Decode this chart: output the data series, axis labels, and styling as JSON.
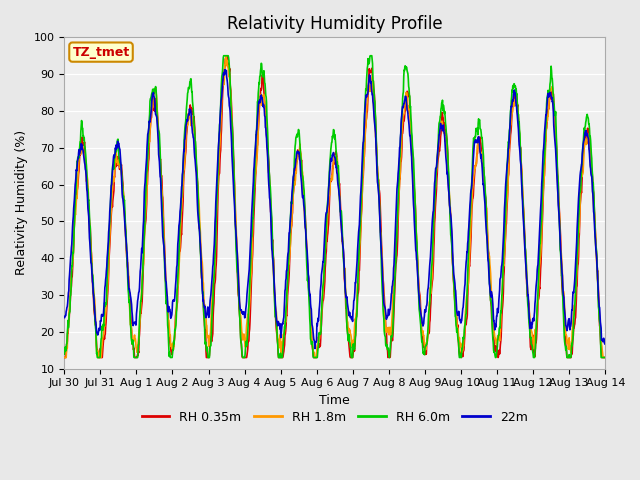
{
  "title": "Relativity Humidity Profile",
  "xlabel": "Time",
  "ylabel": "Relativity Humidity (%)",
  "ylim": [
    10,
    100
  ],
  "tick_labels": [
    "Jul 30",
    "Jul 31",
    "Aug 1",
    "Aug 2",
    "Aug 3",
    "Aug 4",
    "Aug 5",
    "Aug 6",
    "Aug 7",
    "Aug 8",
    "Aug 9",
    "Aug 10",
    "Aug 11",
    "Aug 12",
    "Aug 13",
    "Aug 14"
  ],
  "annotation_text": "TZ_tmet",
  "annotation_bg": "#ffffcc",
  "annotation_border": "#cc8800",
  "annotation_text_color": "#cc0000",
  "colors": {
    "RH 0.35m": "#dd0000",
    "RH 1.8m": "#ff9900",
    "RH 6.0m": "#00cc00",
    "22m": "#0000cc"
  },
  "bg_color": "#e8e8e8",
  "plot_bg": "#f0f0f0",
  "linewidth": 1.2,
  "title_fontsize": 12,
  "label_fontsize": 9,
  "tick_fontsize": 8
}
